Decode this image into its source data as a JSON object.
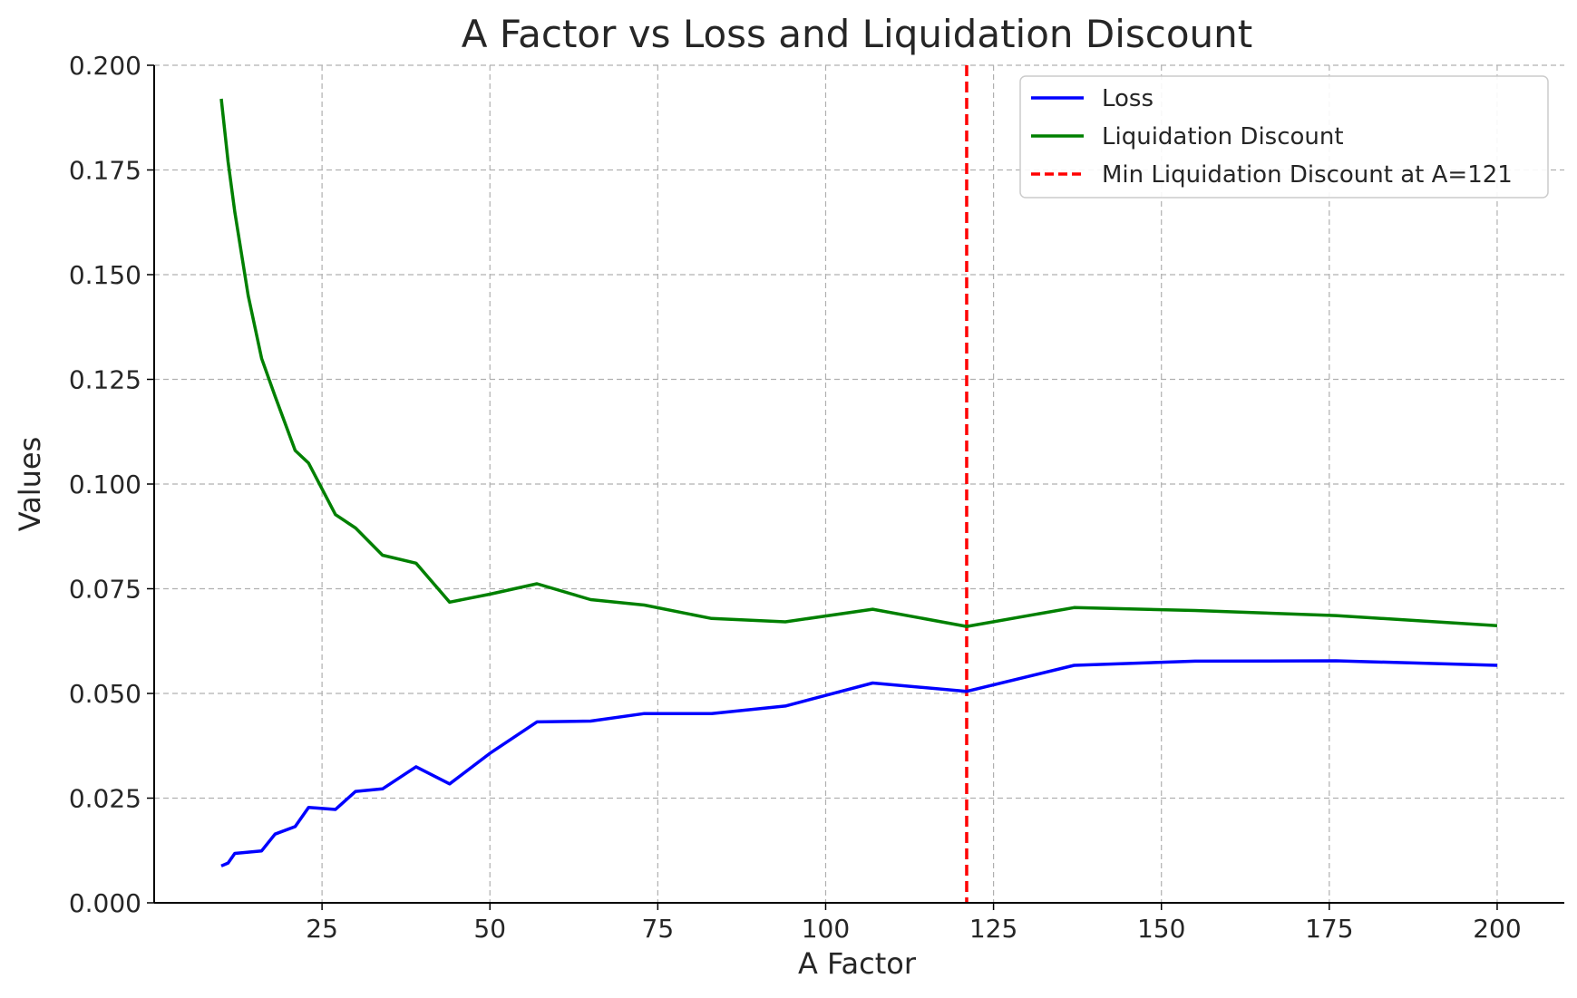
{
  "chart_data": {
    "type": "line",
    "title": "A Factor vs Loss and Liquidation Discount",
    "xlabel": "A Factor",
    "ylabel": "Values",
    "xlim": [
      0,
      210
    ],
    "ylim": [
      0,
      0.2
    ],
    "xticks": [
      25,
      50,
      75,
      100,
      125,
      150,
      175,
      200
    ],
    "xtick_labels": [
      "25",
      "50",
      "75",
      "100",
      "125",
      "150",
      "175",
      "200"
    ],
    "yticks": [
      0,
      0.025,
      0.05,
      0.075,
      0.1,
      0.125,
      0.15,
      0.175,
      0.2
    ],
    "ytick_labels": [
      "0.000",
      "0.025",
      "0.050",
      "0.075",
      "0.100",
      "0.125",
      "0.150",
      "0.175",
      "0.200"
    ],
    "grid": true,
    "legend_position": "top-right",
    "series": [
      {
        "name": "Loss",
        "color": "#0000ff",
        "x": [
          10,
          11,
          12,
          14,
          16,
          18,
          21,
          23,
          27,
          30,
          34,
          39,
          44,
          50,
          57,
          65,
          73,
          83,
          94,
          107,
          121,
          137,
          155,
          176,
          200
        ],
        "y": [
          0.0088,
          0.0095,
          0.0118,
          0.0121,
          0.0124,
          0.0164,
          0.0182,
          0.0228,
          0.0223,
          0.0266,
          0.0272,
          0.0325,
          0.0284,
          0.0357,
          0.0432,
          0.0434,
          0.0452,
          0.0452,
          0.047,
          0.0525,
          0.0505,
          0.0567,
          0.0577,
          0.0578,
          0.0567
        ]
      },
      {
        "name": "Liquidation Discount",
        "color": "#008000",
        "x": [
          10,
          11,
          12,
          14,
          16,
          18,
          21,
          23,
          27,
          30,
          34,
          39,
          44,
          50,
          57,
          65,
          73,
          83,
          94,
          107,
          121,
          137,
          155,
          176,
          200
        ],
        "y": [
          0.192,
          0.177,
          0.165,
          0.145,
          0.13,
          0.121,
          0.108,
          0.105,
          0.0927,
          0.0895,
          0.083,
          0.0811,
          0.0718,
          0.0737,
          0.0762,
          0.0724,
          0.0711,
          0.0679,
          0.0671,
          0.0701,
          0.066,
          0.0705,
          0.0698,
          0.0686,
          0.0662
        ]
      }
    ],
    "reference_lines": [
      {
        "name": "Min Liquidation Discount at A=121",
        "orientation": "vertical",
        "x": 121,
        "color": "#ff0000",
        "style": "dashed"
      }
    ]
  }
}
